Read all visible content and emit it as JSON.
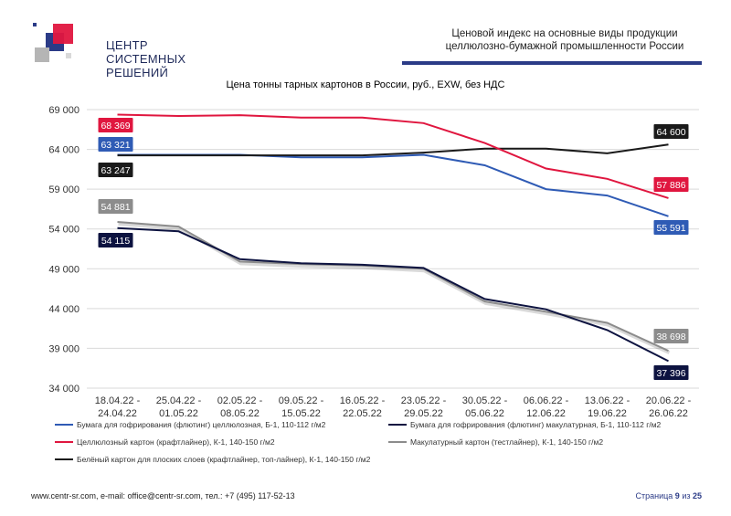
{
  "brand": {
    "line1": "ЦЕНТР",
    "line2": "СИСТЕМНЫХ",
    "line3": "РЕШЕНИЙ"
  },
  "header": {
    "title_line1": "Ценовой индекс на основные виды продукции",
    "title_line2": "целлюлозно-бумажной промышленности России"
  },
  "footer": {
    "contacts": "www.centr-sr.com, e-mail: office@centr-sr.com, тел.: +7 (495) 117-52-13",
    "page_label": "Страница",
    "page_current": "9",
    "page_sep": "из",
    "page_total": "25"
  },
  "chart_data": {
    "type": "line",
    "title": "Цена тонны тарных картонов в России, руб., EXW, без НДС",
    "categories": [
      [
        "18.04.22 -",
        "24.04.22"
      ],
      [
        "25.04.22 -",
        "01.05.22"
      ],
      [
        "02.05.22 -",
        "08.05.22"
      ],
      [
        "09.05.22 -",
        "15.05.22"
      ],
      [
        "16.05.22 -",
        "22.05.22"
      ],
      [
        "23.05.22 -",
        "29.05.22"
      ],
      [
        "30.05.22 -",
        "05.06.22"
      ],
      [
        "06.06.22 -",
        "12.06.22"
      ],
      [
        "13.06.22 -",
        "19.06.22"
      ],
      [
        "20.06.22 -",
        "26.06.22"
      ]
    ],
    "ylim": [
      34000,
      69000
    ],
    "yticks": [
      34000,
      39000,
      44000,
      49000,
      54000,
      59000,
      64000,
      69000
    ],
    "ytick_labels": [
      "34 000",
      "39 000",
      "44 000",
      "49 000",
      "54 000",
      "59 000",
      "64 000",
      "69 000"
    ],
    "grid": true,
    "legend_position": "bottom",
    "series": [
      {
        "name": "Бумага для гофрирования (флютинг) целлюлозная, Б-1, 110-112 г/м2",
        "color": "#2f5bb5",
        "values": [
          63321,
          63321,
          63321,
          63000,
          63000,
          63321,
          62000,
          59000,
          58200,
          55591
        ],
        "first_label": "63 321",
        "last_label": "55 591"
      },
      {
        "name": "Бумага для гофрирования (флютинг) макулатурная, Б-1, 110-112 г/м2",
        "color": "#0d1340",
        "values": [
          54115,
          53700,
          50200,
          49700,
          49500,
          49100,
          45200,
          43900,
          41300,
          37396
        ],
        "first_label": "54 115",
        "last_label": "37 396"
      },
      {
        "name": "Целлюлозный картон (крафтлайнер), К-1, 140-150 г/м2",
        "color": "#e0163f",
        "values": [
          68369,
          68200,
          68300,
          68000,
          68000,
          67300,
          64800,
          61600,
          60300,
          57886
        ],
        "first_label": "68 369",
        "last_label": "57 886"
      },
      {
        "name": "Макулатурный картон (тестлайнер), К-1, 140-150 г/м2",
        "color": "#8c8c8c",
        "values": [
          54881,
          54300,
          49900,
          49600,
          49400,
          49000,
          44900,
          43600,
          42200,
          38698
        ],
        "first_label": "54 881",
        "last_label": "38 698"
      },
      {
        "name": "Белёный картон для плоских слоев (крафтлайнер, топ-лайнер), К-1, 140-150 г/м2",
        "color": "#1a1a1a",
        "values": [
          63247,
          63247,
          63247,
          63247,
          63247,
          63600,
          64100,
          64100,
          63500,
          64600
        ],
        "first_label": "63 247",
        "last_label": "64 600"
      }
    ]
  }
}
